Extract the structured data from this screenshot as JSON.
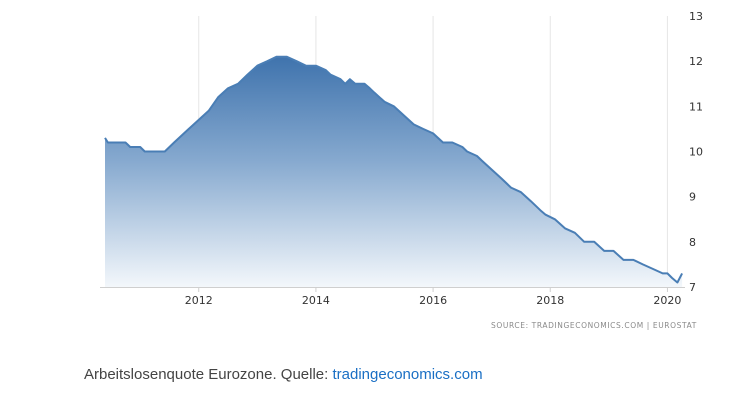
{
  "chart_data": {
    "type": "area",
    "title": "",
    "xlabel": "",
    "ylabel": "",
    "x_ticks": [
      "2012",
      "2014",
      "2016",
      "2018",
      "2020"
    ],
    "y_ticks": [
      "7",
      "8",
      "9",
      "10",
      "11",
      "12",
      "13"
    ],
    "ylim": [
      7,
      13
    ],
    "xlim": [
      2010.4,
      2020.3
    ],
    "y_axis_side": "right",
    "grid": "vertical",
    "legend": "none",
    "series": [
      {
        "color": "#4a7eb5",
        "x": [
          2010.4,
          2010.45,
          2010.5,
          2010.75,
          2010.83,
          2011.0,
          2011.08,
          2011.42,
          2011.58,
          2011.83,
          2012.0,
          2012.17,
          2012.33,
          2012.5,
          2012.67,
          2012.83,
          2013.0,
          2013.17,
          2013.33,
          2013.5,
          2013.67,
          2013.83,
          2014.0,
          2014.17,
          2014.25,
          2014.42,
          2014.5,
          2014.58,
          2014.67,
          2014.83,
          2014.92,
          2015.0,
          2015.17,
          2015.33,
          2015.5,
          2015.67,
          2015.83,
          2016.0,
          2016.17,
          2016.33,
          2016.5,
          2016.58,
          2016.75,
          2016.83,
          2017.0,
          2017.17,
          2017.33,
          2017.5,
          2017.67,
          2017.83,
          2017.92,
          2018.08,
          2018.25,
          2018.42,
          2018.58,
          2018.75,
          2018.92,
          2019.08,
          2019.25,
          2019.42,
          2019.58,
          2019.75,
          2019.92,
          2020.0,
          2020.08,
          2020.17,
          2020.25
        ],
        "values": [
          10.3,
          10.2,
          10.2,
          10.2,
          10.1,
          10.1,
          10.0,
          10.0,
          10.2,
          10.5,
          10.7,
          10.9,
          11.2,
          11.4,
          11.5,
          11.7,
          11.9,
          12.0,
          12.1,
          12.1,
          12.0,
          11.9,
          11.9,
          11.8,
          11.7,
          11.6,
          11.5,
          11.6,
          11.5,
          11.5,
          11.4,
          11.3,
          11.1,
          11.0,
          10.8,
          10.6,
          10.5,
          10.4,
          10.2,
          10.2,
          10.1,
          10.0,
          9.9,
          9.8,
          9.6,
          9.4,
          9.2,
          9.1,
          8.9,
          8.7,
          8.6,
          8.5,
          8.3,
          8.2,
          8.0,
          8.0,
          7.8,
          7.8,
          7.6,
          7.6,
          7.5,
          7.4,
          7.3,
          7.3,
          7.2,
          7.1,
          7.3
        ]
      }
    ]
  },
  "source_note": "SOURCE: TRADINGECONOMICS.COM  |  EUROSTAT",
  "caption": {
    "text": "Arbeitslosenquote Eurozone. Quelle: ",
    "link_text": "tradingeconomics.com"
  }
}
